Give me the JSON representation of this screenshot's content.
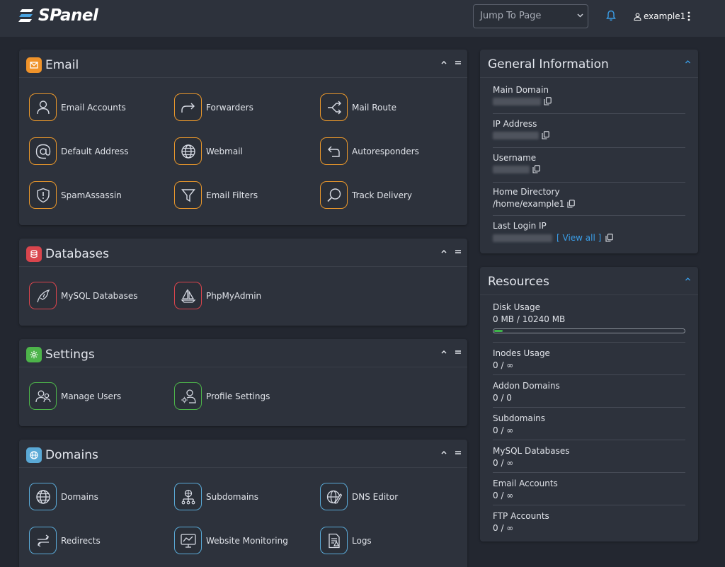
{
  "app": {
    "logo_text": "SPanel"
  },
  "header": {
    "jump_placeholder": "Jump To Page",
    "username": "example1"
  },
  "sections": {
    "email": {
      "title": "Email",
      "items": [
        {
          "label": "Email Accounts",
          "icon": "user-icon"
        },
        {
          "label": "Forwarders",
          "icon": "forward-arrow-icon"
        },
        {
          "label": "Mail Route",
          "icon": "route-icon"
        },
        {
          "label": "Default Address",
          "icon": "at-icon"
        },
        {
          "label": "Webmail",
          "icon": "globe-icon"
        },
        {
          "label": "Autoresponders",
          "icon": "reply-icon"
        },
        {
          "label": "SpamAssassin",
          "icon": "shield-alert-icon"
        },
        {
          "label": "Email Filters",
          "icon": "filter-icon"
        },
        {
          "label": "Track Delivery",
          "icon": "search-icon"
        }
      ]
    },
    "databases": {
      "title": "Databases",
      "items": [
        {
          "label": "MySQL Databases",
          "icon": "dolphin-icon"
        },
        {
          "label": "PhpMyAdmin",
          "icon": "sailboat-icon"
        }
      ]
    },
    "settings": {
      "title": "Settings",
      "items": [
        {
          "label": "Manage Users",
          "icon": "users-icon"
        },
        {
          "label": "Profile Settings",
          "icon": "user-gear-icon"
        }
      ]
    },
    "domains": {
      "title": "Domains",
      "items": [
        {
          "label": "Domains",
          "icon": "globe-icon"
        },
        {
          "label": "Subdomains",
          "icon": "sitemap-icon"
        },
        {
          "label": "DNS Editor",
          "icon": "globe-edit-icon"
        },
        {
          "label": "Redirects",
          "icon": "redirect-icon"
        },
        {
          "label": "Website Monitoring",
          "icon": "monitor-icon"
        },
        {
          "label": "Logs",
          "icon": "log-icon"
        }
      ]
    }
  },
  "general_info": {
    "title": "General Information",
    "main_domain_label": "Main Domain",
    "ip_address_label": "IP Address",
    "username_label": "Username",
    "home_directory_label": "Home Directory",
    "home_directory_value": "/home/example1",
    "last_login_label": "Last Login IP",
    "view_all_link": "[ View all ]"
  },
  "resources": {
    "title": "Resources",
    "disk_usage_label": "Disk Usage",
    "disk_usage_value": "0 MB / 10240 MB",
    "disk_usage_fraction": 0.02,
    "inodes_label": "Inodes Usage",
    "inodes_value": "0 / ∞",
    "addon_label": "Addon Domains",
    "addon_value": "0 / 0",
    "subdomains_label": "Subdomains",
    "subdomains_value": "0 / ∞",
    "mysql_label": "MySQL Databases",
    "mysql_value": "0 / ∞",
    "email_accounts_label": "Email Accounts",
    "email_accounts_value": "0 / ∞",
    "ftp_label": "FTP Accounts",
    "ftp_value": "0 / ∞"
  },
  "colors": {
    "email": "#f0932a",
    "databases": "#d9454d",
    "settings": "#4db44a",
    "domains": "#5aa9d6",
    "link": "#3a9ee8",
    "progress": "#3fb54a"
  }
}
